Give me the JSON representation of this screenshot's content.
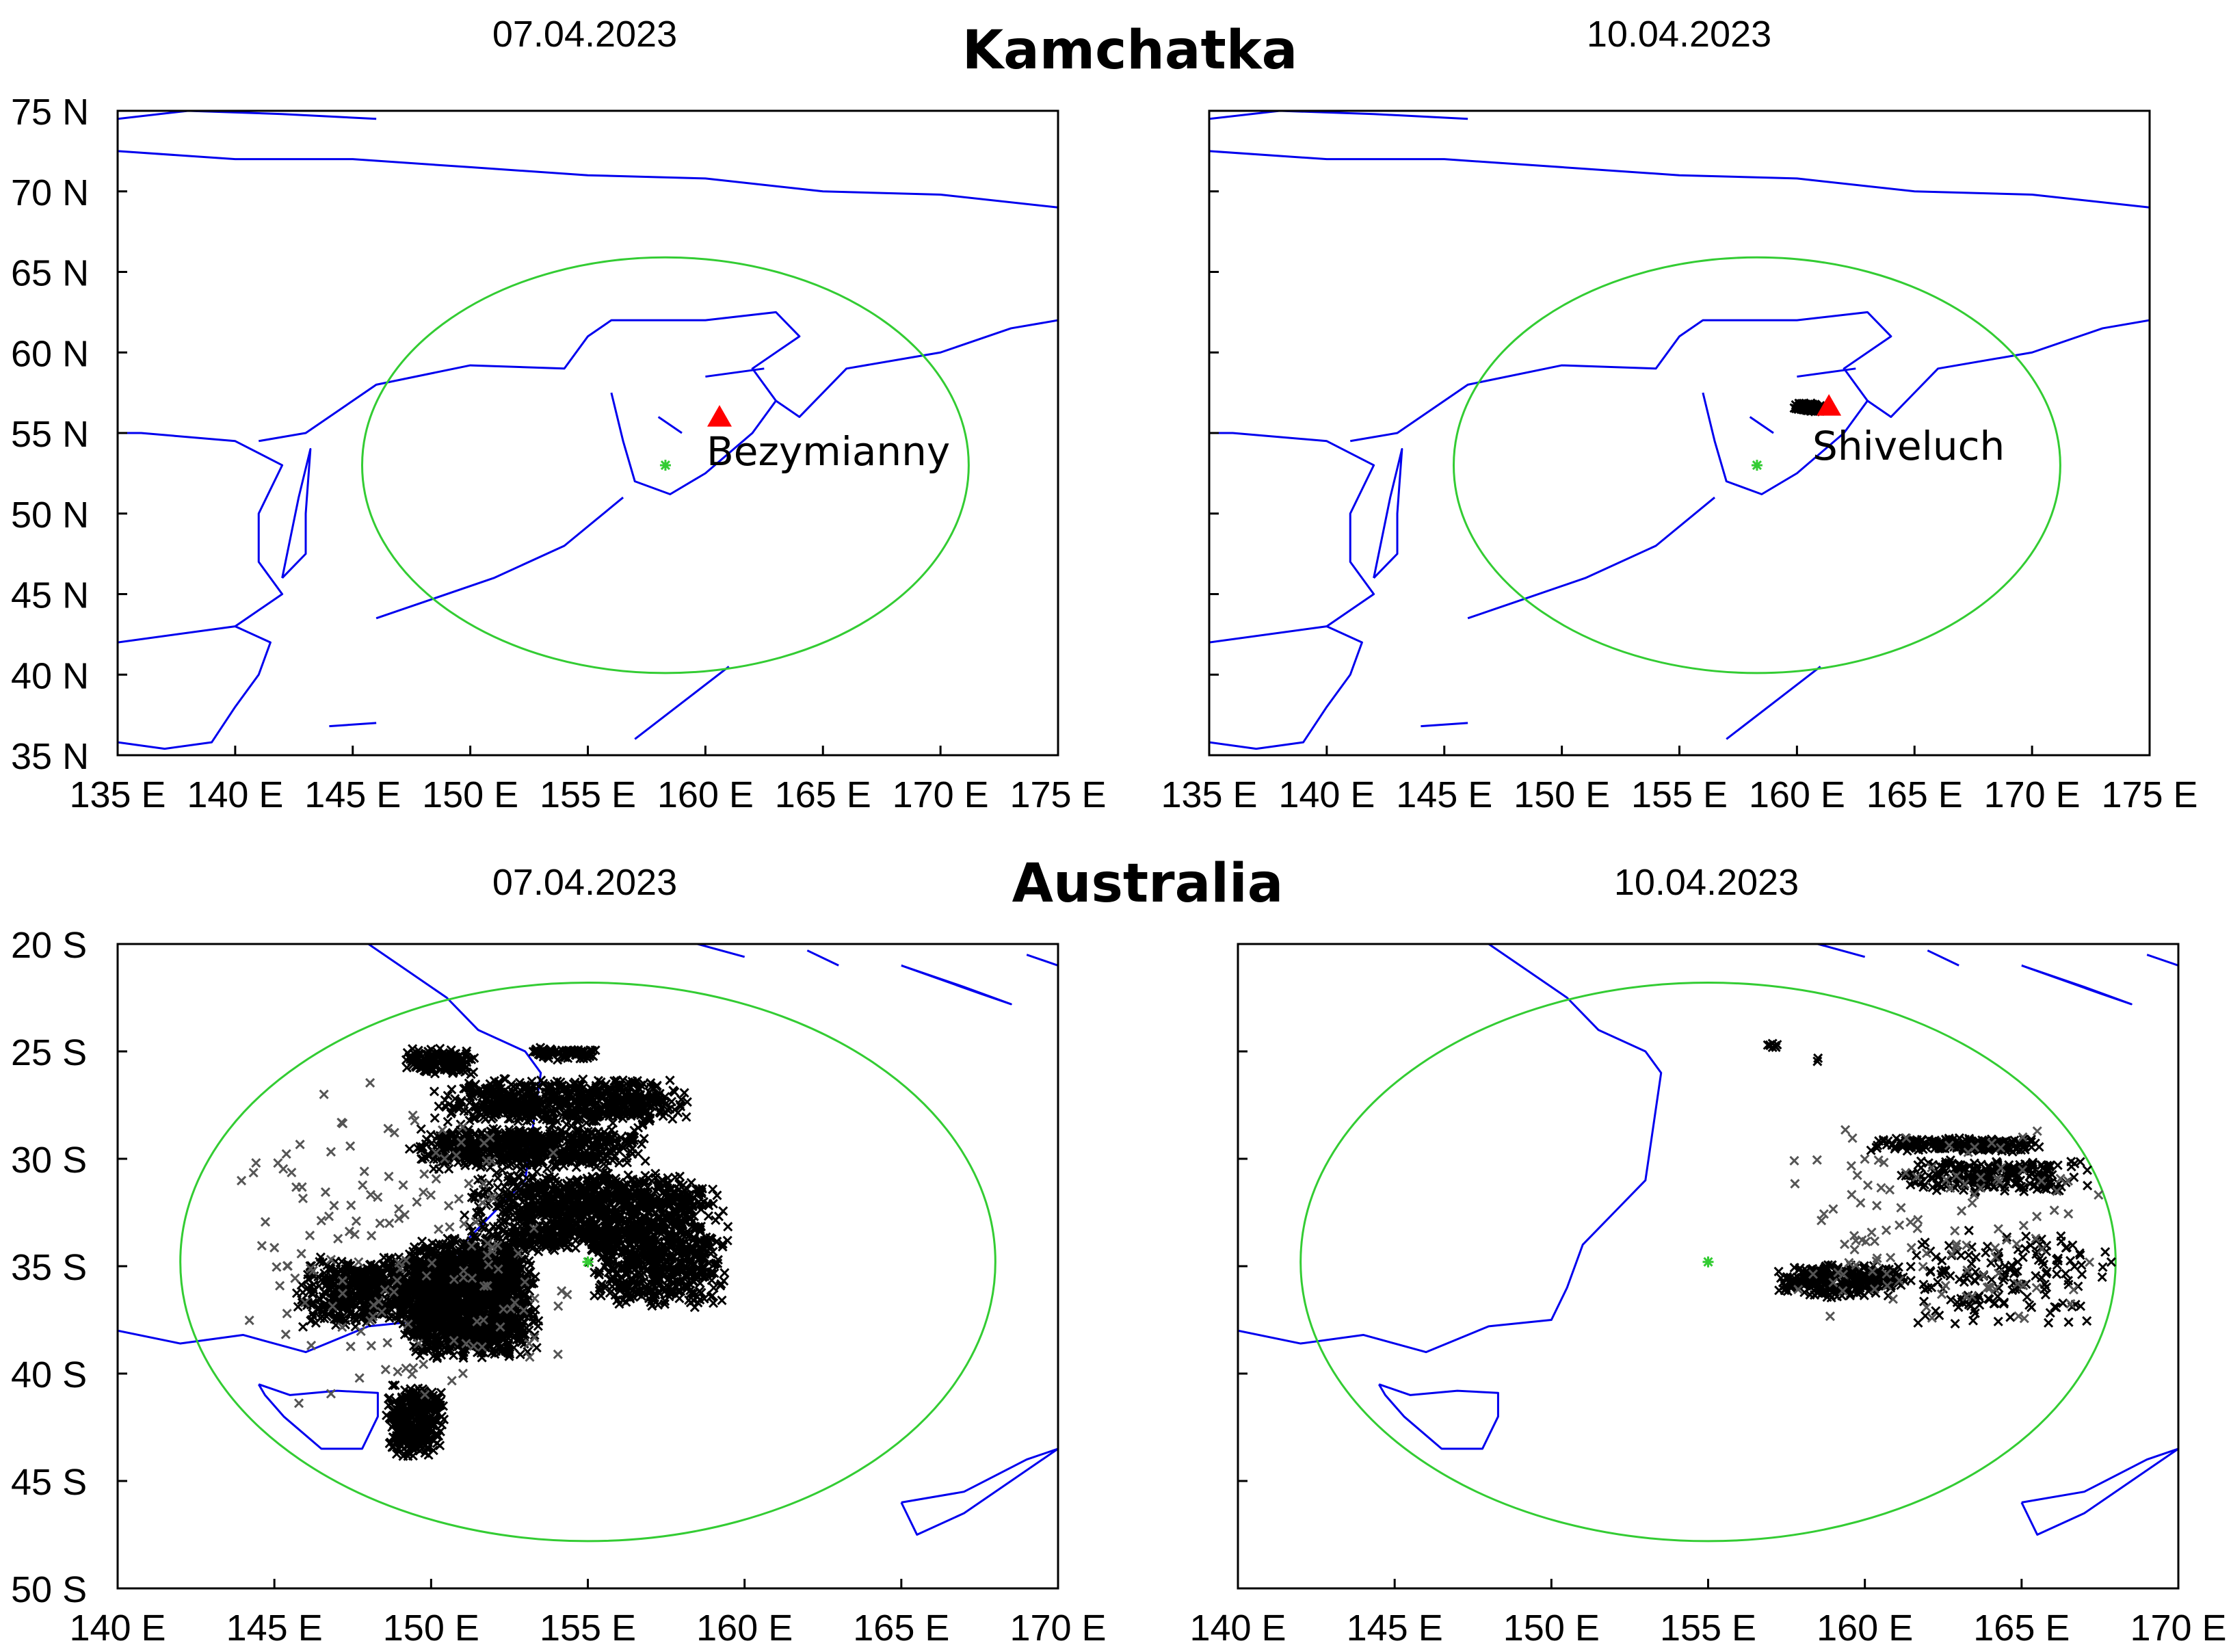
{
  "sections": [
    {
      "title": "Kamchatka",
      "lon_range": [
        135,
        175
      ],
      "lat_range": [
        35,
        75
      ],
      "x_ticks": [
        "135 E",
        "140 E",
        "145 E",
        "150 E",
        "155 E",
        "160 E",
        "165 E",
        "170 E",
        "175 E"
      ],
      "y_ticks": [
        "75 N",
        "70 N",
        "65 N",
        "60 N",
        "55 N",
        "50 N",
        "45 N",
        "40 N",
        "35 N"
      ],
      "panels": [
        {
          "date": "07.04.2023",
          "volcano": {
            "name": "Bezymianny",
            "lon": 160.6,
            "lat": 55.97
          },
          "station": {
            "lon": 158.3,
            "lat": 53.0
          },
          "detections": [],
          "colors": {
            "marker": "#ff0000",
            "circle": "#33cc33",
            "coast": "#0000ee"
          }
        },
        {
          "date": "10.04.2023",
          "volcano": {
            "name": "Shiveluch",
            "lon": 161.36,
            "lat": 56.65
          },
          "station": {
            "lon": 158.3,
            "lat": 53.0
          },
          "detections": [
            {
              "lon": [
                159.8,
                161.2
              ],
              "lat": [
                56.3,
                56.9
              ],
              "count": 90,
              "color": "black"
            }
          ],
          "colors": {
            "marker": "#ff0000",
            "circle": "#33cc33",
            "coast": "#0000ee"
          }
        }
      ]
    },
    {
      "title": "Australia",
      "lon_range": [
        140,
        170
      ],
      "lat_range": [
        -50,
        -20
      ],
      "x_ticks": [
        "140 E",
        "145 E",
        "150 E",
        "155 E",
        "160 E",
        "165 E",
        "170 E"
      ],
      "y_ticks": [
        "20 S",
        "25 S",
        "30 S",
        "35 S",
        "40 S",
        "45 S",
        "50 S"
      ],
      "panels": [
        {
          "date": "07.04.2023",
          "station": {
            "lon": 155.0,
            "lat": -34.8
          },
          "detections": [
            {
              "lon": [
                149.0,
                153.5
              ],
              "lat": [
                -33.5,
                -39.5
              ],
              "count": 1600,
              "color": "black"
            },
            {
              "lon": [
                151.0,
                159.5
              ],
              "lat": [
                -30.5,
                -34.5
              ],
              "count": 1100,
              "color": "black"
            },
            {
              "lon": [
                150.0,
                158.5
              ],
              "lat": [
                -26.2,
                -28.5
              ],
              "count": 600,
              "color": "black"
            },
            {
              "lon": [
                149.0,
                157.0
              ],
              "lat": [
                -28.5,
                -30.5
              ],
              "count": 600,
              "color": "black"
            },
            {
              "lon": [
                145.5,
                151.0
              ],
              "lat": [
                -34.5,
                -38.0
              ],
              "count": 600,
              "color": "black"
            },
            {
              "lon": [
                155.0,
                159.5
              ],
              "lat": [
                -33.0,
                -37.0
              ],
              "count": 500,
              "color": "black"
            },
            {
              "lon": [
                149.0,
                151.5
              ],
              "lat": [
                -24.8,
                -26.2
              ],
              "count": 150,
              "color": "black"
            },
            {
              "lon": [
                153.0,
                155.5
              ],
              "lat": [
                -24.8,
                -25.4
              ],
              "count": 80,
              "color": "black"
            },
            {
              "lon": [
                148.5,
                150.5
              ],
              "lat": [
                -40.5,
                -44.0
              ],
              "count": 350,
              "color": "black"
            },
            {
              "lon": [
                143.5,
                154.5
              ],
              "lat": [
                -26.0,
                -42.0
              ],
              "count": 160,
              "color": "grey"
            }
          ],
          "colors": {
            "circle": "#33cc33",
            "coast": "#0000ee"
          }
        },
        {
          "date": "10.04.2023",
          "station": {
            "lon": 155.0,
            "lat": -34.8
          },
          "detections": [
            {
              "lon": [
                156.7,
                157.3
              ],
              "lat": [
                -24.6,
                -24.9
              ],
              "count": 8,
              "color": "black"
            },
            {
              "lon": [
                158.3,
                158.6
              ],
              "lat": [
                -25.3,
                -25.5
              ],
              "count": 2,
              "color": "black"
            },
            {
              "lon": [
                160.0,
                166.0
              ],
              "lat": [
                -29.0,
                -29.7
              ],
              "count": 180,
              "color": "black"
            },
            {
              "lon": [
                161.0,
                167.2
              ],
              "lat": [
                -30.0,
                -31.6
              ],
              "count": 220,
              "color": "black"
            },
            {
              "lon": [
                157.0,
                161.5
              ],
              "lat": [
                -34.8,
                -36.5
              ],
              "count": 260,
              "color": "black"
            },
            {
              "lon": [
                161.0,
                168.0
              ],
              "lat": [
                -33.0,
                -38.0
              ],
              "count": 160,
              "color": "black"
            },
            {
              "lon": [
                157.5,
                168.0
              ],
              "lat": [
                -27.5,
                -38.5
              ],
              "count": 120,
              "color": "grey"
            }
          ],
          "colors": {
            "circle": "#33cc33",
            "coast": "#0000ee"
          }
        }
      ]
    }
  ]
}
